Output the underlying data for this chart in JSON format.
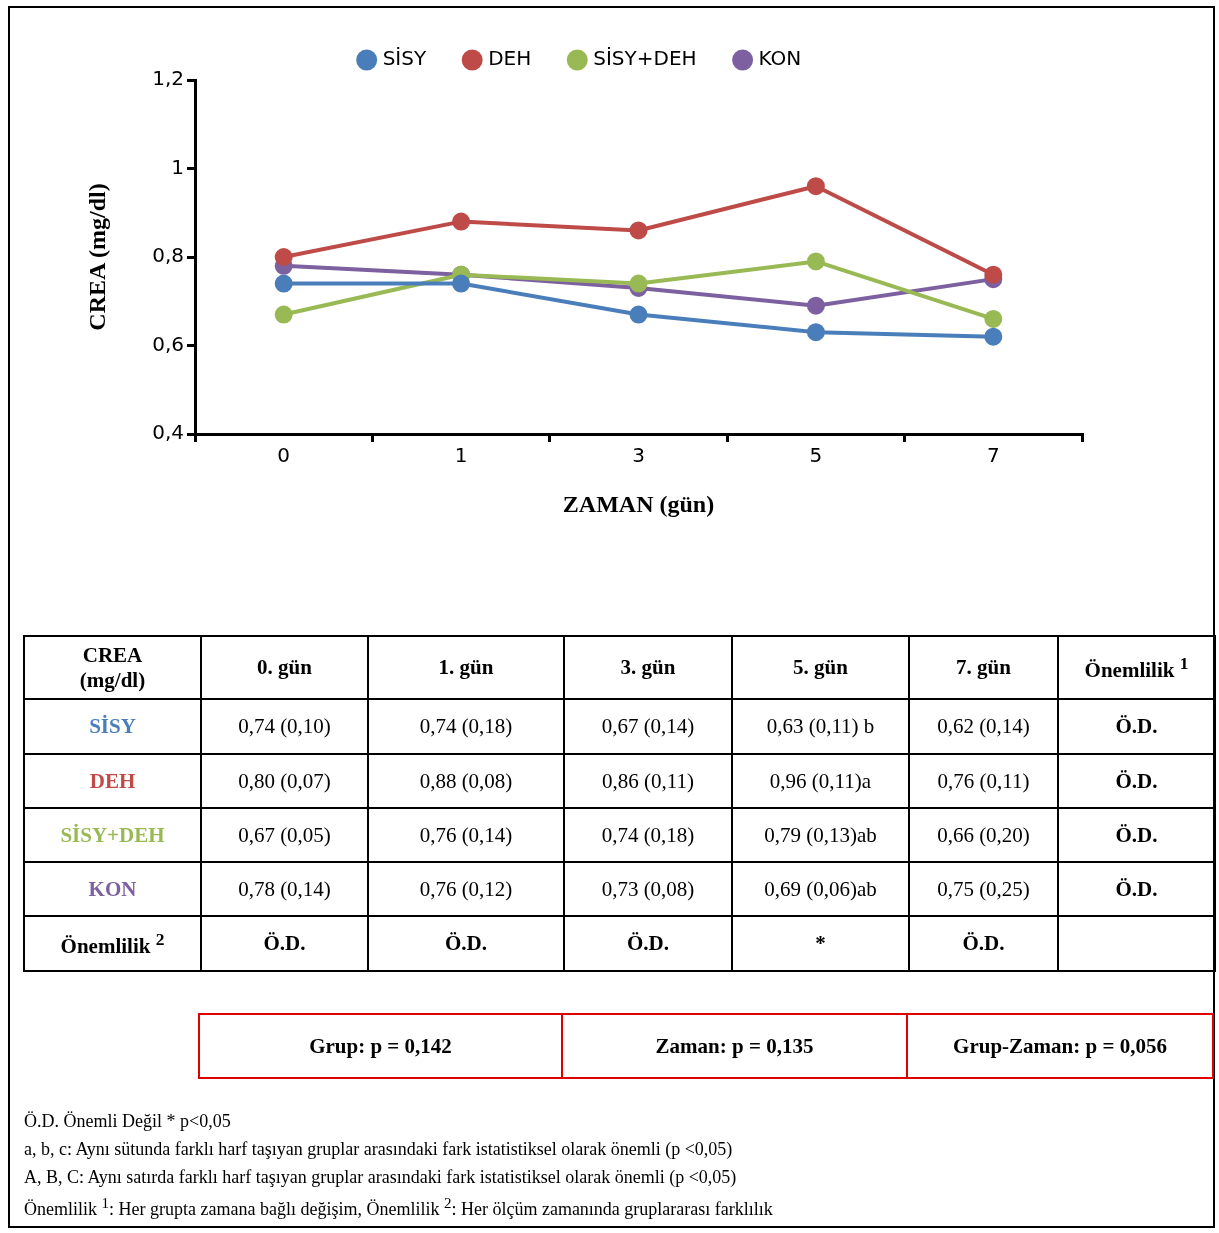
{
  "chart_data": {
    "type": "line",
    "xlabel": "ZAMAN (gün)",
    "ylabel": "CREA (mg/dl)",
    "categories": [
      "0",
      "1",
      "3",
      "5",
      "7"
    ],
    "ylim": [
      0.4,
      1.2
    ],
    "yticks": [
      {
        "value": 0.4,
        "label": "0,4"
      },
      {
        "value": 0.6,
        "label": "0,6"
      },
      {
        "value": 0.8,
        "label": "0,8"
      },
      {
        "value": 1,
        "label": "1"
      },
      {
        "value": 1.2,
        "label": "1,2"
      }
    ],
    "grid": false,
    "legend": "top",
    "marker": "circle",
    "line_style": "solid",
    "series": [
      {
        "name": "SİSY",
        "color": "#4a7ebb",
        "values": [
          0.74,
          0.74,
          0.67,
          0.63,
          0.62
        ],
        "value_labels": [
          "0,74 (0,10)",
          "0,74 (0,18)",
          "0,67 (0,14)",
          "0,63 (0,11) b",
          "0,62 (0,14)"
        ]
      },
      {
        "name": "DEH",
        "color": "#be4b48",
        "values": [
          0.8,
          0.88,
          0.86,
          0.96,
          0.76
        ],
        "value_labels": [
          "0,80 (0,07)",
          "0,88 (0,08)",
          "0,86 (0,11)",
          "0,96 (0,11)a",
          "0,76 (0,11)"
        ]
      },
      {
        "name": "SİSY+DEH",
        "color": "#98b954",
        "values": [
          0.67,
          0.76,
          0.74,
          0.79,
          0.66
        ],
        "value_labels": [
          "0,67 (0,05)",
          "0,76 (0,14)",
          "0,74 (0,18)",
          "0,79 (0,13)ab",
          "0,66 (0,20)"
        ]
      },
      {
        "name": "KON",
        "color": "#7d60a0",
        "values": [
          0.78,
          0.76,
          0.73,
          0.69,
          0.75
        ],
        "value_labels": [
          "0,78 (0,14)",
          "0,76 (0,12)",
          "0,73 (0,08)",
          "0,69 (0,06)ab",
          "0,75 (0,25)"
        ]
      }
    ],
    "annotations": [
      "0. gün",
      "1. gün",
      "3. gün",
      "5. gün",
      "7. gün",
      "Önemlilik $^{1}$",
      "Ö.D.",
      "Ö.D.",
      "Ö.D.",
      "Ö.D.",
      "Önemlilik $^{2}$",
      "Ö.D.",
      "Ö.D.",
      "Ö.D.",
      "*",
      "Ö.D.",
      "Grup:  p = 0,142",
      "Zaman:  p = 0,135",
      "Grup-Zaman:  p = 0,056",
      "Ö.D. Önemli Değil * p<0,05",
      "a, b, c: Aynı sütunda farklı harf taşıyan gruplar arasındaki fark istatistiksel olarak önemli (p <0,05)",
      "A, B, C: Aynı satırda farklı harf taşıyan gruplar arasındaki fark istatistiksel olarak önemli (p <0,05)",
      "Önemlilik $^{1}$: Her grupta zamana bağlı değişim, Önemlilik $^{2}$: Her ölçüm zamanında gruplararası farklılık"
    ]
  }
}
